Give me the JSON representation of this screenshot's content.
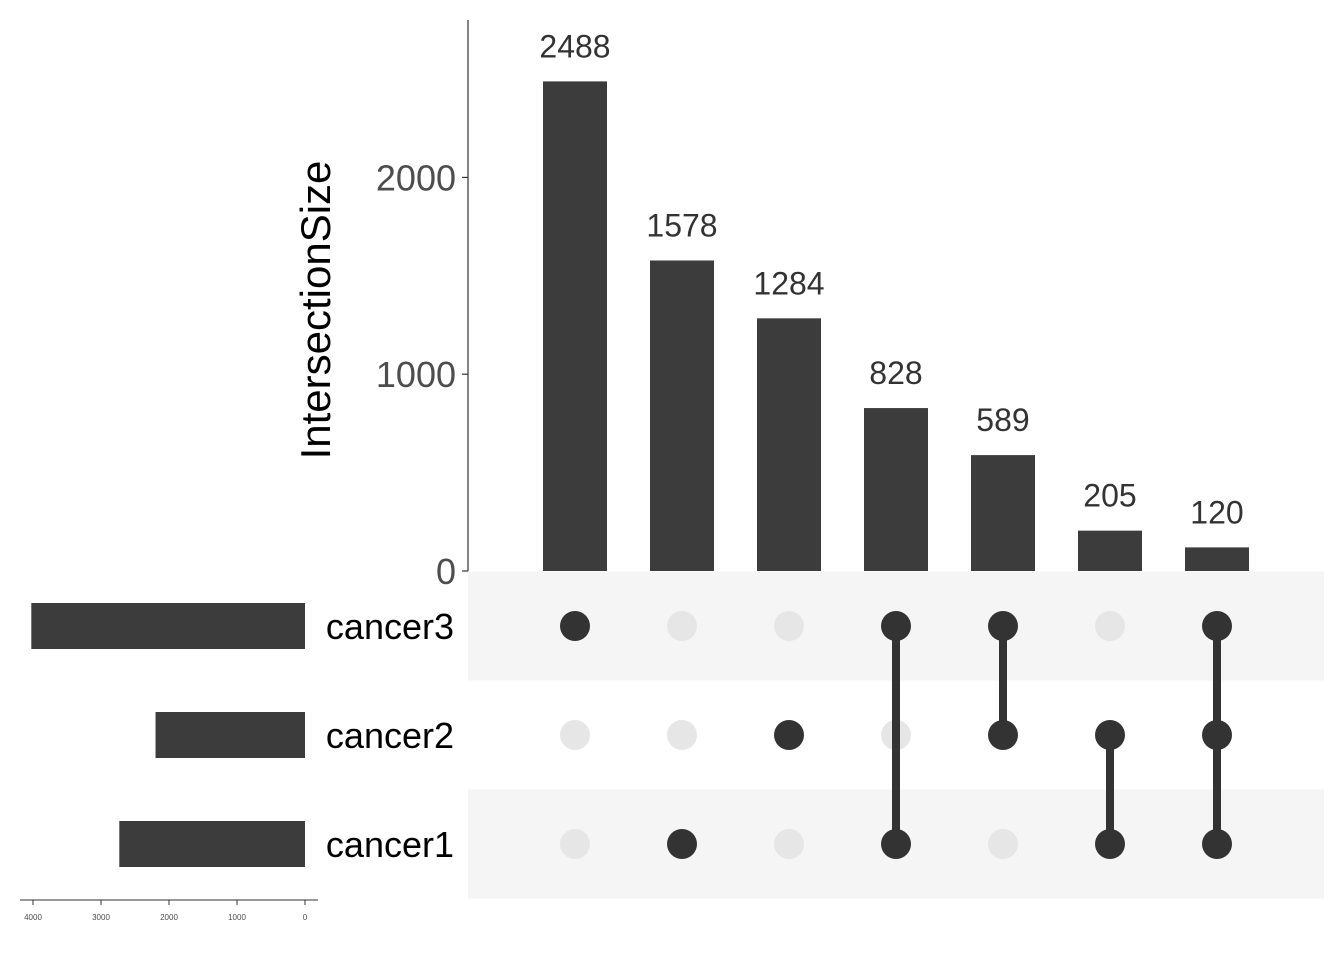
{
  "chart_data": {
    "type": "bar",
    "chart_kind": "upset",
    "intersection_axis": {
      "ylabel": "IntersectionSize",
      "ticks": [
        0,
        1000,
        2000
      ],
      "ylim": [
        0,
        2800
      ]
    },
    "sets": [
      "cancer3",
      "cancer2",
      "cancer1"
    ],
    "intersections": [
      {
        "members": [
          "cancer3"
        ],
        "value": 2488
      },
      {
        "members": [
          "cancer1"
        ],
        "value": 1578
      },
      {
        "members": [
          "cancer2"
        ],
        "value": 1284
      },
      {
        "members": [
          "cancer3",
          "cancer1"
        ],
        "value": 828
      },
      {
        "members": [
          "cancer3",
          "cancer2"
        ],
        "value": 589
      },
      {
        "members": [
          "cancer2",
          "cancer1"
        ],
        "value": 205
      },
      {
        "members": [
          "cancer3",
          "cancer2",
          "cancer1"
        ],
        "value": 120
      }
    ],
    "set_size_axis": {
      "ticks": [
        4000,
        3000,
        2000,
        1000,
        0
      ],
      "xlim": [
        0,
        4200
      ],
      "reversed": true
    },
    "set_sizes": [
      {
        "name": "cancer3",
        "value": 4025
      },
      {
        "name": "cancer2",
        "value": 2198
      },
      {
        "name": "cancer1",
        "value": 2731
      }
    ],
    "grid": false,
    "colors": {
      "bar": "#3c3c3c",
      "dot_active": "#333333",
      "dot_inactive": "#e6e6e6",
      "row_shade": "#f5f5f5"
    }
  }
}
